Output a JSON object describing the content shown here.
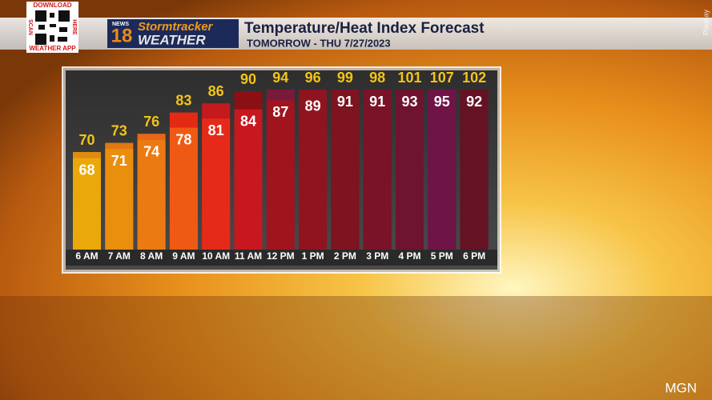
{
  "chart_data": {
    "type": "bar",
    "title": "Temperature/Heat Index Forecast",
    "subtitle": "TOMORROW - THU 7/27/2023",
    "categories": [
      "6 AM",
      "7 AM",
      "8 AM",
      "9 AM",
      "10 AM",
      "11 AM",
      "12 PM",
      "1 PM",
      "2 PM",
      "3 PM",
      "4 PM",
      "5 PM",
      "6 PM"
    ],
    "series": [
      {
        "name": "Heat Index",
        "label_color": "#f2c417",
        "values": [
          70,
          73,
          76,
          83,
          86,
          90,
          94,
          96,
          99,
          98,
          101,
          107,
          102
        ],
        "colors": [
          "#e08a10",
          "#e27812",
          "#e86618",
          "#e42a12",
          "#c41a1e",
          "#8a1014",
          "#7a1a3a",
          "#8e1420",
          "#7c1420",
          "#7a1226",
          "#6c1432",
          "#6e1446",
          "#641224"
        ]
      },
      {
        "name": "Temperature",
        "label_color": "#ffffff",
        "values": [
          68,
          71,
          74,
          78,
          81,
          84,
          87,
          89,
          91,
          91,
          93,
          95,
          92
        ],
        "colors": [
          "#eaa80a",
          "#ea8e0e",
          "#ec7a12",
          "#ee5a14",
          "#e62a1a",
          "#c8181f",
          "#a0141e",
          "#901420",
          "#7d1420",
          "#7a1228",
          "#6e1430",
          "#6e1446",
          "#641224"
        ]
      }
    ]
  },
  "branding": {
    "qr_top": "DOWNLOAD",
    "qr_left": "SCAN",
    "qr_right": "HERE",
    "qr_bottom": "WEATHER APP",
    "news": "NEWS",
    "channel": "18",
    "stormtracker": "Stormtracker",
    "weather": "WEATHER",
    "photo_credit": "Pixabay",
    "agency": "MGN"
  }
}
